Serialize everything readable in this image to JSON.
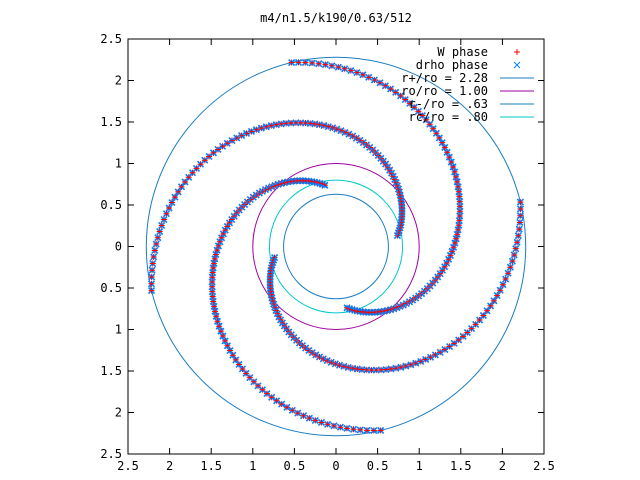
{
  "chart_data": {
    "type": "scatter",
    "title": "m4/n1.5/k190/0.63/512",
    "xlabel": "",
    "ylabel": "",
    "xlim": [
      -2.5,
      2.5
    ],
    "ylim": [
      -2.5,
      2.5
    ],
    "grid": false,
    "legend_position": "top-right",
    "x_ticks": [
      -2.5,
      -2,
      -1.5,
      -1,
      -0.5,
      0,
      0.5,
      1,
      1.5,
      2,
      2.5
    ],
    "y_ticks": [
      -2.5,
      -2,
      -1.5,
      -1,
      -0.5,
      0,
      0.5,
      1,
      1.5,
      2,
      2.5
    ],
    "x_tick_labels": [
      "2.5",
      "2",
      "1.5",
      "1",
      "0.5",
      "0",
      "0.5",
      "1",
      "1.5",
      "2",
      "2.5"
    ],
    "y_tick_labels": [
      "2.5",
      "2",
      "1.5",
      "1",
      "0.5",
      "0",
      "0.5",
      "1",
      "1.5",
      "2",
      "2.5"
    ],
    "series": [
      {
        "name": "W phase",
        "kind": "points",
        "marker": "plus",
        "color": "#ff0000",
        "arms": 4,
        "r_min": 0.75,
        "r_max": 2.28,
        "pitch_rad": 3.2,
        "start_angles_rad": [
          1.75,
          3.32,
          4.89,
          6.46
        ]
      },
      {
        "name": "drho phase",
        "kind": "points",
        "marker": "cross",
        "color": "#0080ff",
        "arms": 4,
        "r_min": 0.75,
        "r_max": 2.28,
        "pitch_rad": 3.2,
        "start_angles_rad": [
          1.75,
          3.32,
          4.89,
          6.46
        ]
      },
      {
        "name": "r+/ro = 2.28",
        "kind": "circle",
        "radius": 2.28,
        "color": "#1a7cc2"
      },
      {
        "name": "ro/ro = 1.00",
        "kind": "circle",
        "radius": 1.0,
        "color": "#a000a0"
      },
      {
        "name": "r-/ro = .63",
        "kind": "circle",
        "radius": 0.63,
        "color": "#1a7cc2"
      },
      {
        "name": "rc/ro = .80",
        "kind": "circle",
        "radius": 0.8,
        "color": "#00c8c8"
      }
    ]
  }
}
